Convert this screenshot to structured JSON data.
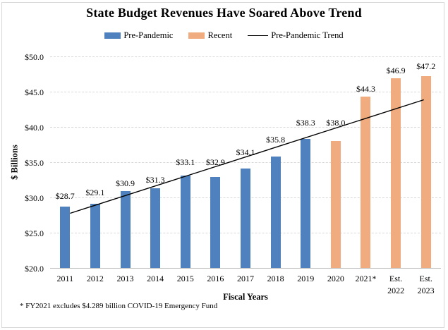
{
  "chart_data": {
    "type": "bar",
    "title": "State Budget Revenues Have Soared Above Trend",
    "xlabel": "Fiscal Years",
    "ylabel": "$ Billions",
    "footnote": "* FY2021 excludes $4.289 billion COVID-19 Emergency Fund",
    "categories": [
      "2011",
      "2012",
      "2013",
      "2014",
      "2015",
      "2016",
      "2017",
      "2018",
      "2019",
      "2020",
      "2021*",
      "Est.\n2022",
      "Est.\n2023"
    ],
    "series": [
      {
        "name": "Pre-Pandemic",
        "color": "#4E81BD",
        "start_index": 0,
        "values": [
          28.7,
          29.1,
          30.9,
          31.3,
          33.1,
          32.9,
          34.1,
          35.8,
          38.3
        ]
      },
      {
        "name": "Recent",
        "color": "#F0AC7E",
        "start_index": 9,
        "values": [
          38.0,
          44.3,
          46.9,
          47.2
        ]
      }
    ],
    "trend": {
      "name": "Pre-Pandemic Trend",
      "color": "#000000",
      "start": {
        "index": 0,
        "value": 27.75
      },
      "end": {
        "index": 12,
        "value": 43.85
      }
    },
    "y_axis": {
      "min": 20,
      "max": 50,
      "step": 5,
      "tick_labels": [
        "$20.0",
        "$25.0",
        "$30.0",
        "$35.0",
        "$40.0",
        "$45.0",
        "$50.0"
      ]
    },
    "data_label_prefix": "$",
    "legend": [
      {
        "label": "Pre-Pandemic",
        "swatch": "rect",
        "color": "#4E81BD"
      },
      {
        "label": "Recent",
        "swatch": "rect",
        "color": "#F0AC7E"
      },
      {
        "label": "Pre-Pandemic Trend",
        "swatch": "line",
        "color": "#000000"
      }
    ],
    "layout_hints": {
      "grid": "dashed-horizontal",
      "legend_position": "top",
      "ylim": [
        20,
        50
      ],
      "label_gaps": [
        8,
        9,
        4,
        5,
        12,
        14,
        16,
        17,
        16,
        19,
        4,
        4,
        7
      ],
      "trend_x_offsets": [
        7,
        -3
      ]
    }
  }
}
